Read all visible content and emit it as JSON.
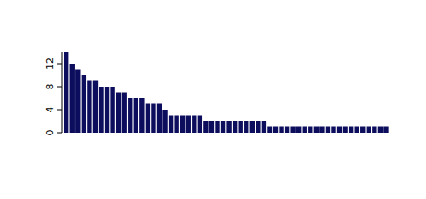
{
  "chart_data": {
    "type": "bar",
    "categories": [
      null,
      null,
      null,
      null,
      null,
      null,
      null,
      null,
      null,
      null,
      null,
      null,
      null,
      null,
      null,
      null,
      null,
      null,
      null,
      null,
      null,
      null,
      null,
      null,
      null,
      null,
      null,
      null,
      null,
      null,
      null,
      null,
      null,
      null,
      null,
      null,
      null,
      null,
      null,
      null,
      null,
      null,
      null,
      null,
      null,
      null,
      null,
      null,
      null,
      null,
      null,
      null,
      null,
      null,
      null,
      null
    ],
    "values": [
      14,
      12,
      11,
      10,
      9,
      9,
      8,
      8,
      8,
      7,
      7,
      6,
      6,
      6,
      5,
      5,
      5,
      4,
      3,
      3,
      3,
      3,
      3,
      3,
      2,
      2,
      2,
      2,
      2,
      2,
      2,
      2,
      2,
      2,
      2,
      1,
      1,
      1,
      1,
      1,
      1,
      1,
      1,
      1,
      1,
      1,
      1,
      1,
      1,
      1,
      1,
      1,
      1,
      1,
      1,
      1
    ],
    "color": "#0d0d5e",
    "ylim": [
      0,
      14
    ],
    "yticks": [
      0,
      4,
      8,
      12
    ],
    "grid": false,
    "tick_labels": "y"
  }
}
